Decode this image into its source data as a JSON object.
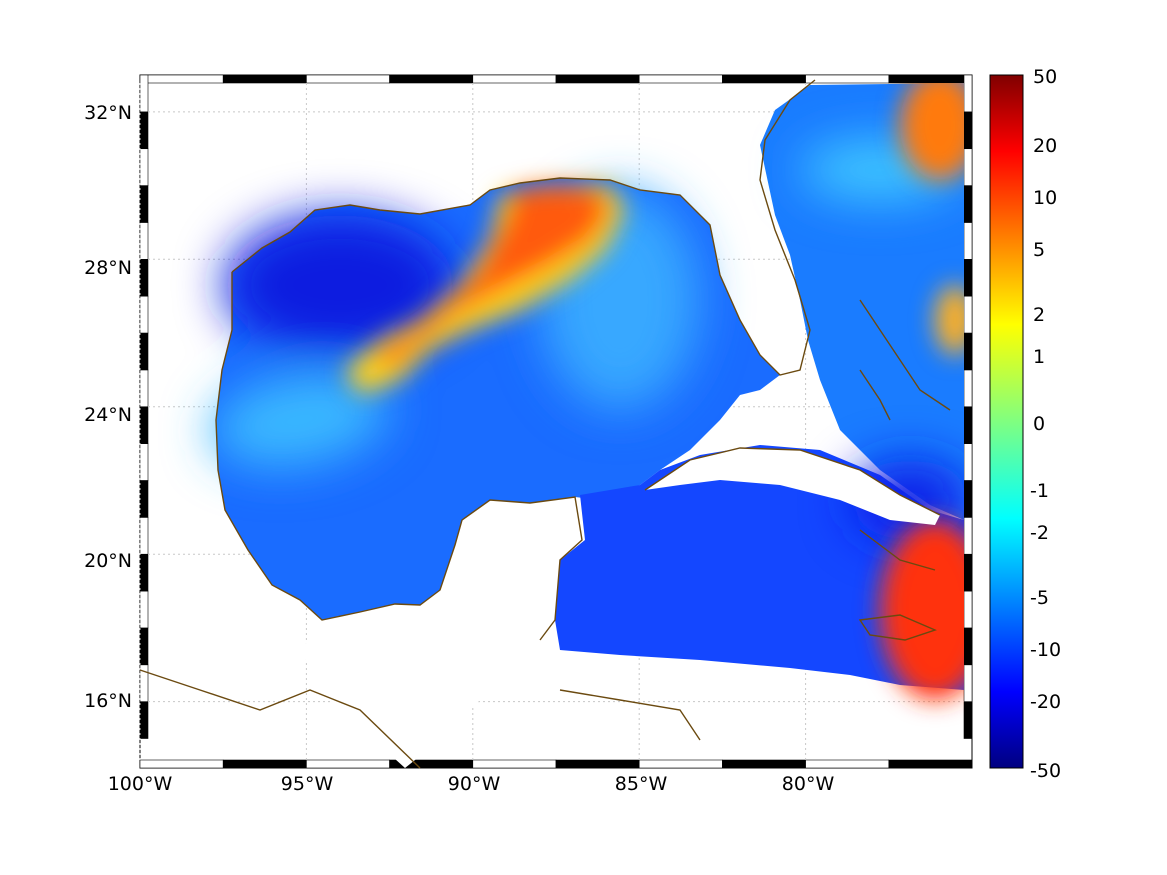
{
  "map": {
    "lon_range": [
      -100,
      -75
    ],
    "lat_range": [
      14.2,
      33
    ],
    "grid": "dotted",
    "lat_ticks": [
      {
        "value": 16,
        "label": "16°N"
      },
      {
        "value": 20,
        "label": "20°N"
      },
      {
        "value": 24,
        "label": "24°N"
      },
      {
        "value": 28,
        "label": "28°N"
      },
      {
        "value": 32,
        "label": "32°N"
      }
    ],
    "lon_ticks": [
      {
        "value": -100,
        "label": "100°W"
      },
      {
        "value": -95,
        "label": "95°W"
      },
      {
        "value": -90,
        "label": "90°W"
      },
      {
        "value": -85,
        "label": "85°W"
      },
      {
        "value": -80,
        "label": "80°W"
      }
    ],
    "coastline_color": "#6b4a10",
    "ocean_base_color": "#1a5aff"
  },
  "colorbar": {
    "colormap": "jet",
    "scale": "nonlinear",
    "ticks": [
      "50",
      "20",
      "10",
      "5",
      "2",
      "1",
      "0",
      "-1",
      "-2",
      "-5",
      "-10",
      "-20",
      "-50"
    ]
  }
}
